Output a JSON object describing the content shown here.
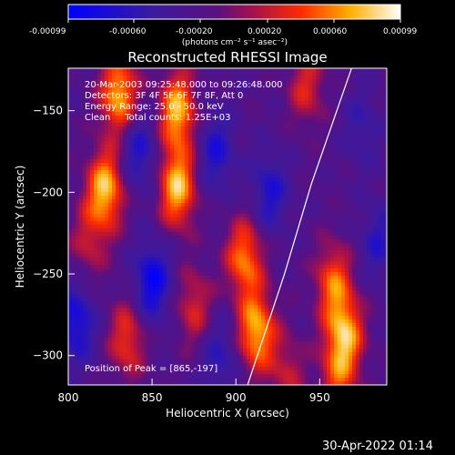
{
  "colorbar": {
    "ticks": [
      "-0.00099",
      "-0.00060",
      "-0.00020",
      "0.00020",
      "0.00060",
      "0.00099"
    ],
    "unit": "(photons cm⁻² s⁻¹ asec⁻²)"
  },
  "info": {
    "line1": "20-Mar-2003 09:25:48.000 to 09:26:48.000",
    "line2": "Detectors: 3F 4F 5F 6F 7F 8F, Att 0",
    "line3": "Energy Range: 25.0 - 50.0 keV",
    "line4": "Clean     Total counts: 1.25E+03",
    "peak": "Position of Peak = [865,-197]"
  },
  "footer": {
    "date": "30-Apr-2022 01:14"
  },
  "chart_data": {
    "type": "heatmap",
    "title": "Reconstructed RHESSI Image",
    "xlabel": "Heliocentric X (arcsec)",
    "ylabel": "Heliocentric Y (arcsec)",
    "xlim": [
      800,
      990
    ],
    "ylim": [
      -318,
      -124
    ],
    "x_ticks": [
      800,
      850,
      900,
      950
    ],
    "y_ticks": [
      -150,
      -200,
      -250,
      -300
    ],
    "colorbar_range": [
      -0.00099,
      0.00099
    ],
    "peak": [
      865,
      -197
    ],
    "limb_line": [
      [
        907,
        -318
      ],
      [
        929,
        -250
      ],
      [
        945,
        -195
      ],
      [
        969,
        -124
      ]
    ],
    "sources": [
      {
        "x": 830,
        "y": -140,
        "value": 0.00095
      },
      {
        "x": 822,
        "y": -198,
        "value": 0.00099
      },
      {
        "x": 865,
        "y": -150,
        "value": 0.00095
      },
      {
        "x": 865,
        "y": -197,
        "value": 0.00099
      },
      {
        "x": 905,
        "y": -240,
        "value": 0.0008
      },
      {
        "x": 912,
        "y": -285,
        "value": 0.00095
      },
      {
        "x": 875,
        "y": -270,
        "value": 0.0005
      },
      {
        "x": 942,
        "y": -135,
        "value": 0.0005
      },
      {
        "x": 958,
        "y": -255,
        "value": 0.0007
      },
      {
        "x": 965,
        "y": -288,
        "value": 0.0009
      },
      {
        "x": 960,
        "y": -315,
        "value": 0.0005
      },
      {
        "x": 835,
        "y": -290,
        "value": 0.0006
      },
      {
        "x": 812,
        "y": -230,
        "value": 0.0004
      },
      {
        "x": 930,
        "y": -310,
        "value": 0.0004
      },
      {
        "x": 850,
        "y": -255,
        "value": -0.0007
      },
      {
        "x": 805,
        "y": -280,
        "value": -0.0006
      },
      {
        "x": 842,
        "y": -175,
        "value": -0.0005
      },
      {
        "x": 888,
        "y": -175,
        "value": -0.0005
      },
      {
        "x": 920,
        "y": -200,
        "value": -0.0005
      },
      {
        "x": 890,
        "y": -300,
        "value": -0.0004
      },
      {
        "x": 985,
        "y": -230,
        "value": -0.0004
      },
      {
        "x": 975,
        "y": -160,
        "value": -0.0003
      }
    ]
  }
}
